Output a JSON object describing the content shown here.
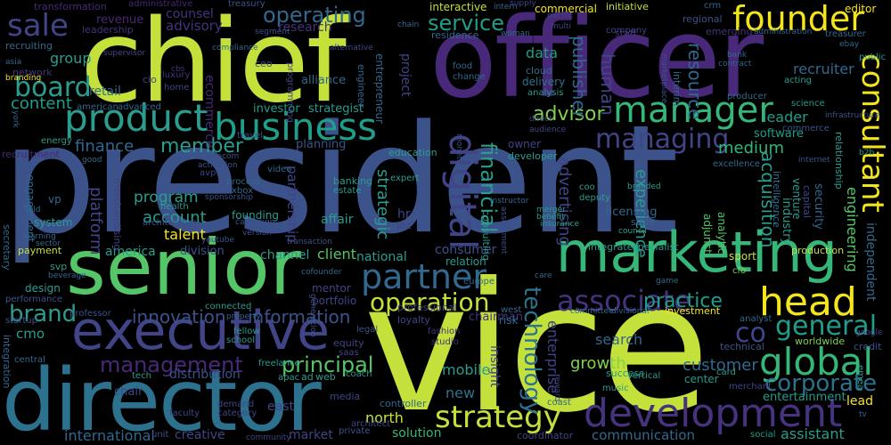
{
  "words": {
    "president": "president",
    "vice": "vice",
    "chief": "chief",
    "officer": "officer",
    "director": "director",
    "senior": "senior",
    "marketing": "marketing",
    "executive": "executive",
    "development": "development",
    "manager": "manager",
    "business": "business",
    "product": "product",
    "founder": "founder",
    "head": "head",
    "global": "global",
    "strategy": "strategy",
    "partner": "partner",
    "consultant": "consultant",
    "digital": "digital",
    "managing": "managing",
    "associate": "associate",
    "operation": "operation",
    "management": "management",
    "general": "general",
    "board": "board",
    "sale": "sale",
    "corporate": "corporate",
    "principal": "principal",
    "advisor": "advisor",
    "technology": "technology",
    "financial": "financial",
    "operating": "operating",
    "service": "service",
    "co": "co",
    "brand": "brand",
    "innovation": "innovation",
    "information": "information",
    "communication": "communication",
    "international": "international",
    "customer": "customer",
    "growth": "growth",
    "practice": "practice",
    "member": "member",
    "finance": "finance",
    "account": "account",
    "talent": "talent",
    "content": "content",
    "medium": "medium",
    "north": "north",
    "solution": "solution",
    "engineering": "engineering",
    "research": "research",
    "advisory": "advisory",
    "counsel": "counsel",
    "group": "group",
    "retail": "retail",
    "client": "client",
    "channel": "channel",
    "division": "division",
    "program": "program",
    "america": "america",
    "consumer": "consumer",
    "partnership": "partnership",
    "strategic": "strategic",
    "human": "human",
    "resource": "resource",
    "publisher": "publisher",
    "project": "project",
    "data": "data",
    "leader": "leader",
    "acquisition": "acquisition",
    "experience": "experience",
    "advertising": "advertising",
    "independent": "independent",
    "enterprise": "enterprise",
    "insight": "insight",
    "search": "search",
    "mobile": "mobile",
    "new": "new",
    "east": "east",
    "creative": "creative",
    "market": "market",
    "distribution": "distribution",
    "chair": "chair",
    "cmo": "cmo",
    "platform": "platform",
    "investor": "investor",
    "strategist": "strategist",
    "alliance": "alliance",
    "recruiter": "recruiter",
    "commercial": "commercial",
    "editor": "editor",
    "sport": "sport",
    "national": "national",
    "relation": "relation",
    "mentor": "mentor",
    "portfolio": "portfolio",
    "interactive": "interactive",
    "initiative": "initiative",
    "revenue": "revenue",
    "transformation": "transformation",
    "administrative": "administrative",
    "treasury": "treasury",
    "recruiting": "recruiting",
    "leadership": "leadership",
    "network": "network",
    "ecommerce": "ecommerce",
    "home": "home",
    "cloud": "cloud",
    "delivery": "delivery",
    "food": "food",
    "change": "change",
    "residence": "residence",
    "staff": "staff",
    "emerging": "emerging",
    "regional": "regional",
    "company": "company",
    "analysis": "analysis",
    "acting": "acting",
    "producer": "producer",
    "treasurer": "treasurer",
    "public": "public",
    "science": "science",
    "software": "software",
    "venture": "venture",
    "relationship": "relationship",
    "security": "security",
    "capital": "capital",
    "industry": "industry",
    "intelligence": "intelligence",
    "licensing": "licensing",
    "store": "store",
    "adjunct": "adjunct",
    "analytic": "analytic",
    "integrated": "integrated",
    "specialist": "specialist",
    "production": "production",
    "investment": "investment",
    "analyst": "analyst",
    "worldwide": "worldwide",
    "technical": "technical",
    "credit": "credit",
    "lead": "lead",
    "entertainment": "entertainment",
    "assistant": "assistant",
    "social": "social",
    "coordinator": "coordinator",
    "coast": "coast",
    "controller": "controller",
    "fashion": "fashion",
    "studio": "studio",
    "chairman": "chairman",
    "professional": "professional",
    "loyalty": "loyalty",
    "legal": "legal",
    "equity": "equity",
    "saas": "saas",
    "coach": "coach",
    "magazine": "magazine",
    "private": "private",
    "media": "media",
    "architect": "architect",
    "apac": "apac",
    "tech": "tech",
    "ad": "ad",
    "web": "web",
    "demand": "demand",
    "category": "category",
    "faculty": "faculty",
    "unit": "unit",
    "community": "community",
    "fellow": "fellow",
    "school": "school",
    "freelance": "freelance",
    "connected": "connected",
    "professor": "professor",
    "startup": "startup",
    "performance": "performance",
    "design": "design",
    "svp": "svp",
    "payment": "payment",
    "engagement": "engagement",
    "system": "system",
    "vp": "vp",
    "recruitment": "recruitment",
    "energy": "energy",
    "american": "american",
    "advanced": "advanced",
    "luxury": "luxury",
    "bloomberg": "bloomberg",
    "ceo": "ceo",
    "segment": "segment",
    "branding": "branding",
    "health": "health",
    "avp": "avp",
    "process": "process",
    "xbox": "xbox",
    "founding": "founding",
    "affair": "affair",
    "planning": "planning",
    "banking": "banking",
    "estate": "estate",
    "education": "education",
    "expert": "expert",
    "hr": "hr",
    "inc": "inc",
    "owner": "owner",
    "consulting": "consulting",
    "engineer": "engineer",
    "entrepreneur": "entrepreneur",
    "crm": "crm",
    "supply": "supply",
    "pacific": "pacific",
    "multi": "multi",
    "bank": "bank",
    "contract": "contract",
    "ebay": "ebay",
    "b2b": "b2b",
    "commerce": "commerce",
    "internet": "internet",
    "excellence": "excellence",
    "branded": "branded",
    "coo": "coo",
    "deputy": "deputy",
    "developer": "developer",
    "monetization": "monetization",
    "interim": "interim",
    "cfo": "cfo",
    "europe": "europe",
    "care": "care",
    "committee": "committee",
    "divisional": "divisional",
    "merchant": "merchant",
    "card": "card",
    "vertical": "vertical",
    "music": "music",
    "success": "success",
    "center": "center",
    "west": "west",
    "cofounder": "cofounder",
    "video": "video",
    "travel": "travel",
    "telecom": "telecom",
    "activation": "activation",
    "compliance": "compliance",
    "administration": "administration",
    "alternative": "alternative",
    "infrastructure": "infrastructure",
    "programming": "programming",
    "merchandising": "merchandising",
    "architecture": "architecture",
    "intern": "intern",
    "generation": "generation",
    "central": "central",
    "integration": "integration",
    "secretary": "secretary",
    "field": "field",
    "learning": "learning",
    "sector": "sector",
    "beverage": "beverage",
    "insurance": "insurance",
    "benefit": "benefit",
    "council": "council",
    "merger": "merger",
    "risk": "risk",
    "instructor": "instructor",
    "assessment": "assessment",
    "transaction": "transaction",
    "sponsorship": "sponsorship",
    "campaign": "campaign",
    "version": "version",
    "youtube": "youtube",
    "woman": "woman",
    "marketplace": "marketplace",
    "supervisor": "supervisor",
    "asia": "asia",
    "york": "york",
    "good": "good",
    "cbs": "cbs",
    "chain": "chain",
    "cio": "cio",
    "tv": "tv",
    "emea": "emea",
    "google": "google",
    "game": "game",
    "property": "property",
    "reward": "reward",
    "direct": "direct",
    "audience": "audience"
  }
}
